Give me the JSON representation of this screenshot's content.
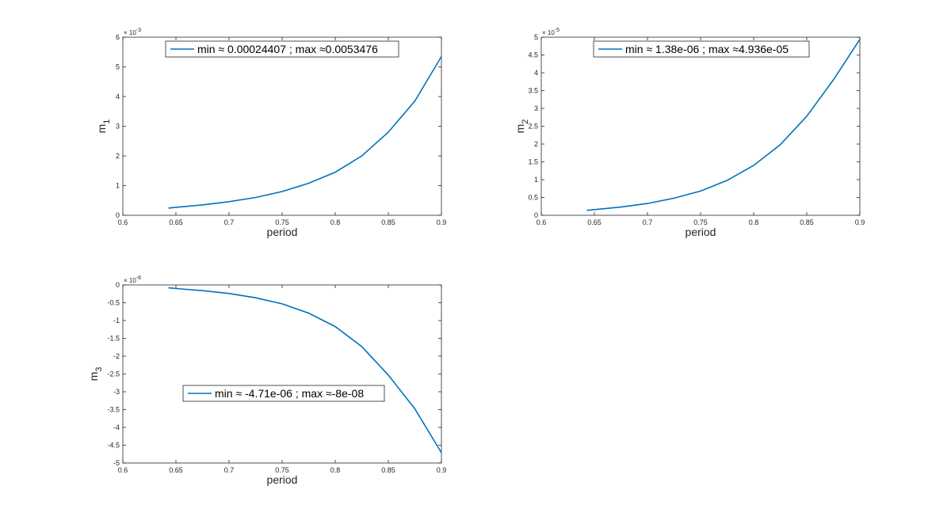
{
  "colors": {
    "series": "#0072bd",
    "axes": "#262626",
    "background": "#ffffff"
  },
  "chart_data": [
    {
      "type": "line",
      "xlabel": "period",
      "ylabel_base": "m",
      "ylabel_sub": "1",
      "xlim": [
        0.6,
        0.9
      ],
      "ylim": [
        0,
        6
      ],
      "xticks": [
        "0.6",
        "0.65",
        "0.7",
        "0.75",
        "0.8",
        "0.85",
        "0.9"
      ],
      "yticks": [
        "0",
        "1",
        "2",
        "3",
        "4",
        "5",
        "6"
      ],
      "yscale_exponent_base": "× 10",
      "yscale_exponent": "-3",
      "legend": "min ≈ 0.00024407 ; max ≈0.0053476",
      "legend_position": "top-center",
      "series": [
        {
          "x": [
            0.643,
            0.65,
            0.675,
            0.7,
            0.725,
            0.75,
            0.775,
            0.8,
            0.825,
            0.85,
            0.875,
            0.9
          ],
          "values": [
            0.244,
            0.268,
            0.35,
            0.46,
            0.6,
            0.8,
            1.08,
            1.45,
            2.0,
            2.8,
            3.85,
            5.35
          ]
        }
      ]
    },
    {
      "type": "line",
      "xlabel": "period",
      "ylabel_base": "m",
      "ylabel_sub": "2",
      "xlim": [
        0.6,
        0.9
      ],
      "ylim": [
        0,
        5
      ],
      "xticks": [
        "0.6",
        "0.65",
        "0.7",
        "0.75",
        "0.8",
        "0.85",
        "0.9"
      ],
      "yticks": [
        "0",
        "0.5",
        "1",
        "1.5",
        "2",
        "2.5",
        "3",
        "3.5",
        "4",
        "4.5",
        "5"
      ],
      "yscale_exponent_base": "× 10",
      "yscale_exponent": "-5",
      "legend": "min ≈ 1.38e-06 ; max ≈4.936e-05",
      "legend_position": "top-center",
      "series": [
        {
          "x": [
            0.643,
            0.65,
            0.675,
            0.7,
            0.725,
            0.75,
            0.775,
            0.8,
            0.825,
            0.85,
            0.875,
            0.9
          ],
          "values": [
            0.138,
            0.16,
            0.23,
            0.33,
            0.48,
            0.68,
            0.98,
            1.4,
            1.98,
            2.78,
            3.8,
            4.94
          ]
        }
      ]
    },
    {
      "type": "line",
      "xlabel": "period",
      "ylabel_base": "m",
      "ylabel_sub": "3",
      "xlim": [
        0.6,
        0.9
      ],
      "ylim": [
        -5,
        0
      ],
      "xticks": [
        "0.6",
        "0.65",
        "0.7",
        "0.75",
        "0.8",
        "0.85",
        "0.9"
      ],
      "yticks": [
        "0",
        "-0.5",
        "-1",
        "-1.5",
        "-2",
        "-2.5",
        "-3",
        "-3.5",
        "-4",
        "-4.5",
        "-5"
      ],
      "yscale_exponent_base": "× 10",
      "yscale_exponent": "-6",
      "legend": "min ≈ -4.71e-06 ; max ≈-8e-08",
      "legend_position": "lower-center",
      "series": [
        {
          "x": [
            0.643,
            0.65,
            0.675,
            0.7,
            0.725,
            0.75,
            0.775,
            0.8,
            0.825,
            0.85,
            0.875,
            0.9
          ],
          "values": [
            -0.08,
            -0.1,
            -0.16,
            -0.24,
            -0.36,
            -0.53,
            -0.79,
            -1.17,
            -1.73,
            -2.53,
            -3.48,
            -4.71
          ]
        }
      ]
    }
  ]
}
